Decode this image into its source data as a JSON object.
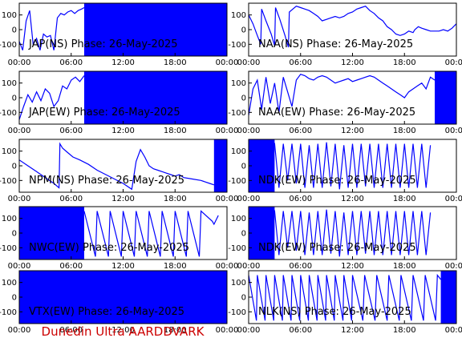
{
  "figure": {
    "footer": "Dunedin Ultra AARDDVARK",
    "footer_color": "#cc0000",
    "trace_color": "#0000ff"
  },
  "chart_data": [
    {
      "type": "line",
      "title": "JAP(NS) Phase: 26-May-2025",
      "xlabel": "",
      "ylabel": "",
      "ylim": [
        -180,
        180
      ],
      "yticks": [
        100,
        0,
        -100
      ],
      "xticks": [
        "00:00",
        "06:00",
        "12:00",
        "18:00",
        "00:00"
      ],
      "x_hours": [
        0,
        6,
        12,
        18,
        24
      ],
      "series": [
        {
          "x": [
            0,
            0.4,
            0.8,
            1.2,
            1.6,
            2.0,
            2.4,
            2.8,
            3.2,
            3.6,
            4.0,
            4.4,
            4.8,
            5.2,
            5.6,
            6.0,
            6.4,
            6.8,
            7.2,
            7.5
          ],
          "values": [
            -80,
            -140,
            60,
            130,
            -100,
            -60,
            -140,
            -30,
            -50,
            -40,
            -140,
            80,
            110,
            100,
            120,
            130,
            110,
            130,
            140,
            150
          ]
        }
      ],
      "saturated_from_hour": 7.5
    },
    {
      "type": "line",
      "title": "NAA(NS) Phase: 26-May-2025",
      "xlabel": "",
      "ylabel": "",
      "ylim": [
        -180,
        180
      ],
      "yticks": [
        100,
        0,
        -100
      ],
      "xticks": [
        "00:00",
        "06:00",
        "12:00",
        "18:00",
        "00:00"
      ],
      "x_hours": [
        0,
        6,
        12,
        18,
        24
      ],
      "series": [
        {
          "x": [
            0,
            0.5,
            1.0,
            1.4,
            1.5,
            2.0,
            2.6,
            3.0,
            3.1,
            3.6,
            4.2,
            4.6,
            4.7,
            5.5,
            6.0,
            6.5,
            7.0,
            7.5,
            8.0,
            8.5,
            9.0,
            9.5,
            10.0,
            10.5,
            11.0,
            11.5,
            12.0,
            12.5,
            13.0,
            13.5,
            14.0,
            14.5,
            15.0,
            15.5,
            16.0,
            16.5,
            17.0,
            17.5,
            18.0,
            18.5,
            19.0,
            19.2,
            19.6,
            20.0,
            20.5,
            21.0,
            21.5,
            22.0,
            22.5,
            23.0,
            23.5,
            24.0
          ],
          "values": [
            100,
            40,
            -40,
            -100,
            140,
            60,
            -30,
            -110,
            150,
            70,
            -40,
            -120,
            120,
            160,
            150,
            140,
            130,
            110,
            90,
            60,
            70,
            80,
            90,
            80,
            90,
            110,
            120,
            140,
            150,
            160,
            130,
            110,
            80,
            60,
            20,
            0,
            -30,
            -40,
            -30,
            -10,
            -20,
            0,
            20,
            10,
            0,
            -10,
            -10,
            -10,
            0,
            -10,
            10,
            40
          ]
        }
      ]
    },
    {
      "type": "line",
      "title": "JAP(EW) Phase: 26-May-2025",
      "xlabel": "",
      "ylabel": "",
      "ylim": [
        -180,
        180
      ],
      "yticks": [
        100,
        0,
        -100
      ],
      "xticks": [
        "00:00",
        "06:00",
        "12:00",
        "18:00",
        "00:00"
      ],
      "x_hours": [
        0,
        6,
        12,
        18,
        24
      ],
      "series": [
        {
          "x": [
            0,
            0.5,
            1.0,
            1.5,
            2.0,
            2.5,
            3.0,
            3.5,
            4.0,
            4.5,
            5.0,
            5.5,
            6.0,
            6.5,
            7.0,
            7.5
          ],
          "values": [
            -150,
            -60,
            20,
            -30,
            40,
            -20,
            60,
            30,
            -60,
            -20,
            80,
            60,
            120,
            140,
            110,
            150
          ]
        }
      ],
      "saturated_from_hour": 7.5
    },
    {
      "type": "line",
      "title": "NAA(EW) Phase: 26-May-2025",
      "xlabel": "",
      "ylabel": "",
      "ylim": [
        -180,
        180
      ],
      "yticks": [
        100,
        0,
        -100
      ],
      "xticks": [
        "00:00",
        "06:00",
        "12:00",
        "18:00",
        "00:00"
      ],
      "x_hours": [
        0,
        6,
        12,
        18,
        24
      ],
      "series": [
        {
          "x": [
            0,
            0.5,
            1.0,
            1.5,
            2.0,
            2.5,
            3.0,
            3.5,
            4.0,
            4.5,
            5.0,
            5.5,
            6.0,
            6.5,
            7.0,
            7.5,
            8.0,
            8.5,
            9.0,
            9.5,
            10.0,
            10.5,
            11.0,
            11.5,
            12.0,
            12.5,
            13.0,
            13.5,
            14.0,
            14.5,
            15.0,
            15.5,
            16.0,
            16.5,
            17.0,
            17.5,
            18.0,
            18.5,
            19.0,
            19.5,
            20.0,
            20.5,
            21.0,
            21.5
          ],
          "values": [
            -120,
            60,
            120,
            -80,
            140,
            -40,
            100,
            -100,
            140,
            40,
            -60,
            120,
            160,
            150,
            130,
            120,
            140,
            150,
            140,
            120,
            100,
            110,
            120,
            130,
            110,
            120,
            130,
            140,
            150,
            140,
            120,
            100,
            80,
            60,
            40,
            20,
            0,
            40,
            60,
            80,
            100,
            60,
            140,
            120
          ]
        }
      ],
      "saturated_from_hour": 21.5
    },
    {
      "type": "line",
      "title": "NPM(NS) Phase: 26-May-2025",
      "xlabel": "",
      "ylabel": "",
      "ylim": [
        -180,
        180
      ],
      "yticks": [
        100,
        0,
        -100
      ],
      "xticks": [
        "00:00",
        "06:00",
        "12:00",
        "18:00",
        "00:00"
      ],
      "x_hours": [
        0,
        6,
        12,
        18,
        24
      ],
      "series": [
        {
          "x": [
            0,
            1.0,
            2.0,
            3.0,
            4.0,
            4.6,
            4.7,
            5.0,
            5.6,
            6.2,
            7.0,
            8.0,
            9.0,
            10.0,
            11.0,
            12.0,
            13.0,
            13.5,
            14.0,
            14.5,
            15.0,
            15.5,
            16.0,
            16.5,
            17.0,
            17.5,
            18.0,
            18.5,
            19.0,
            20.0,
            21.0,
            22.0,
            22.5
          ],
          "values": [
            40,
            0,
            -40,
            -80,
            -120,
            -150,
            150,
            120,
            90,
            60,
            40,
            10,
            -30,
            -60,
            -90,
            -120,
            -160,
            30,
            110,
            60,
            0,
            -20,
            -30,
            -40,
            -50,
            -60,
            -70,
            -60,
            -80,
            -90,
            -100,
            -120,
            -130
          ]
        }
      ],
      "saturated_from_hour": 22.5
    },
    {
      "type": "line",
      "title": "NDK(EW) Phase: 26-May-2025",
      "xlabel": "",
      "ylabel": "",
      "ylim": [
        -180,
        180
      ],
      "yticks": [
        100,
        0,
        -100
      ],
      "xticks": [
        "00:00",
        "06:00",
        "12:00",
        "18:00",
        "00:00"
      ],
      "x_hours": [
        0,
        6,
        12,
        18,
        24
      ],
      "series": [
        {
          "x": [
            0,
            3.0,
            3.5,
            4.0,
            4.5,
            5.0,
            5.5,
            6.0,
            6.5,
            7.0,
            7.5,
            8.0,
            8.5,
            9.0,
            9.5,
            10.0,
            10.5,
            11.0,
            11.5,
            12.0,
            12.5,
            13.0,
            13.5,
            14.0,
            14.5,
            15.0,
            15.5,
            16.0,
            16.5,
            17.0,
            17.5,
            18.0,
            18.5,
            19.0,
            19.5,
            20.0,
            20.5,
            21.0
          ],
          "values": [
            0,
            150,
            -150,
            150,
            -100,
            150,
            -120,
            150,
            -150,
            140,
            -150,
            150,
            -150,
            160,
            -140,
            150,
            -160,
            140,
            -150,
            150,
            -150,
            150,
            -140,
            150,
            -150,
            150,
            -150,
            150,
            -150,
            150,
            -150,
            150,
            -150,
            150,
            -150,
            150,
            -150,
            140
          ]
        }
      ],
      "saturated_until_hour": 3.0
    },
    {
      "type": "line",
      "title": "NWC(EW) Phase: 26-May-2025",
      "xlabel": "",
      "ylabel": "",
      "ylim": [
        -180,
        180
      ],
      "yticks": [
        100,
        0,
        -100
      ],
      "xticks": [
        "00:00",
        "06:00",
        "12:00",
        "18:00",
        "00:00"
      ],
      "x_hours": [
        0,
        6,
        12,
        18,
        24
      ],
      "series": [
        {
          "x": [
            7.5,
            8.8,
            9.0,
            10.3,
            10.5,
            11.8,
            12.0,
            13.3,
            13.5,
            14.8,
            15.0,
            16.3,
            16.5,
            17.8,
            18.0,
            19.3,
            19.5,
            20.8,
            21.0,
            22.3,
            22.5,
            23.0
          ],
          "values": [
            150,
            -160,
            150,
            -160,
            150,
            -160,
            150,
            -160,
            150,
            -160,
            150,
            -160,
            150,
            -160,
            150,
            -160,
            150,
            -160,
            150,
            80,
            60,
            120
          ]
        }
      ],
      "saturated_until_hour": 7.5
    },
    {
      "type": "line",
      "title": "NDK(EW) Phase: 26-May-2025",
      "xlabel": "",
      "ylabel": "",
      "ylim": [
        -180,
        180
      ],
      "yticks": [
        100,
        0,
        -100
      ],
      "xticks": [
        "00:00",
        "06:00",
        "12:00",
        "18:00",
        "00:00"
      ],
      "x_hours": [
        0,
        6,
        12,
        18,
        24
      ],
      "series": [
        {
          "x": [
            0,
            3.0,
            3.5,
            4.0,
            4.5,
            5.0,
            5.5,
            6.0,
            6.5,
            7.0,
            7.5,
            8.0,
            8.5,
            9.0,
            9.5,
            10.0,
            10.5,
            11.0,
            11.5,
            12.0,
            12.5,
            13.0,
            13.5,
            14.0,
            14.5,
            15.0,
            15.5,
            16.0,
            16.5,
            17.0,
            17.5,
            18.0,
            18.5,
            19.0,
            19.5,
            20.0,
            20.5,
            21.0
          ],
          "values": [
            0,
            150,
            -150,
            150,
            -100,
            150,
            -120,
            150,
            -150,
            140,
            -150,
            150,
            -150,
            160,
            -140,
            150,
            -160,
            140,
            -150,
            150,
            -150,
            150,
            -140,
            150,
            -150,
            150,
            -150,
            150,
            -150,
            150,
            -150,
            150,
            -150,
            150,
            -150,
            150,
            -150,
            140
          ]
        }
      ],
      "saturated_until_hour": 3.0
    },
    {
      "type": "line",
      "title": "VTX(EW) Phase: 26-May-2025",
      "xlabel": "",
      "ylabel": "",
      "ylim": [
        -180,
        180
      ],
      "yticks": [
        100,
        0,
        -100
      ],
      "xticks": [
        "00:00",
        "06:00",
        "12:00",
        "18:00",
        "00:00"
      ],
      "x_hours": [
        0,
        6,
        12,
        18,
        24
      ],
      "series": [
        {
          "x": [
            0,
            24
          ],
          "values": [
            0,
            0
          ]
        }
      ],
      "saturated_from_hour": 0
    },
    {
      "type": "line",
      "title": "NLK(NS) Phase: 26-May-2025",
      "xlabel": "",
      "ylabel": "",
      "ylim": [
        -180,
        180
      ],
      "yticks": [
        100,
        0,
        -100
      ],
      "xticks": [
        "00:00",
        "06:00",
        "12:00",
        "18:00",
        "00:00"
      ],
      "x_hours": [
        0,
        6,
        12,
        18,
        24
      ],
      "series": [
        {
          "x": [
            0,
            0.9,
            1.0,
            1.9,
            2.0,
            2.9,
            3.0,
            3.9,
            4.0,
            4.9,
            5.0,
            5.9,
            6.0,
            6.9,
            7.0,
            7.9,
            8.0,
            8.9,
            9.0,
            9.9,
            10.0,
            10.9,
            11.0,
            11.9,
            12.0,
            13.2,
            13.4,
            14.6,
            14.8,
            16.0,
            16.2,
            17.4,
            17.6,
            18.8,
            19.0,
            20.2,
            20.4,
            21.6,
            21.8,
            22.2
          ],
          "values": [
            150,
            -160,
            150,
            -160,
            150,
            -160,
            150,
            -160,
            150,
            -160,
            150,
            -160,
            150,
            -160,
            150,
            -160,
            150,
            -160,
            150,
            -160,
            150,
            -160,
            150,
            -160,
            150,
            -160,
            150,
            -160,
            150,
            -160,
            150,
            -160,
            150,
            -160,
            150,
            -160,
            150,
            -160,
            150,
            120
          ]
        }
      ],
      "saturated_from_hour": 22.2
    }
  ]
}
